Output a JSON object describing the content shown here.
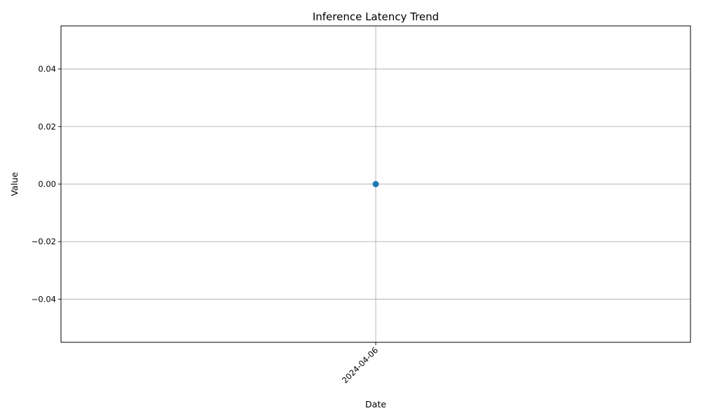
{
  "chart_data": {
    "type": "line",
    "title": "Inference Latency Trend",
    "xlabel": "Date",
    "ylabel": "Value",
    "x": [
      "2024-04-06"
    ],
    "series": [
      {
        "values": [
          0.0
        ],
        "color": "#1f77b4",
        "marker": "circle"
      }
    ],
    "ylim": [
      -0.055,
      0.055
    ],
    "yticks": [
      -0.04,
      -0.02,
      0.0,
      0.02,
      0.04
    ],
    "ytick_labels": [
      "−0.04",
      "−0.02",
      "0.00",
      "0.02",
      "0.04"
    ],
    "xtick_labels": [
      "2024-04-06"
    ],
    "xtick_rotation": 45,
    "grid": true,
    "legend": "none"
  }
}
